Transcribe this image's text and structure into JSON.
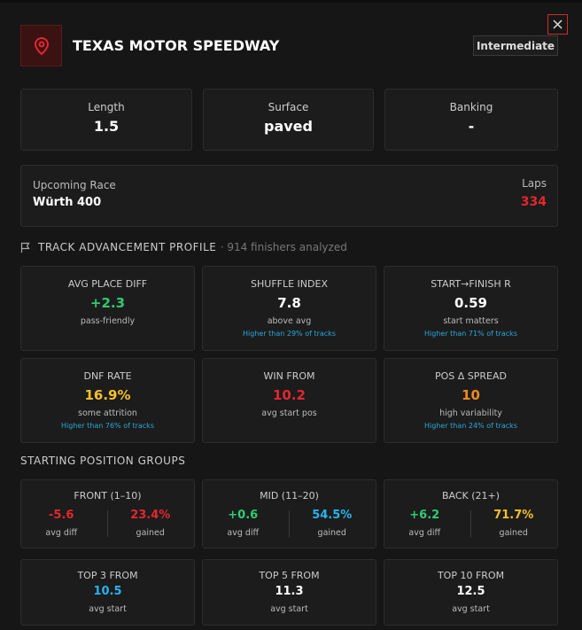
{
  "header": {
    "title": "TEXAS MOTOR SPEEDWAY",
    "badge": "Intermediate"
  },
  "stats": [
    {
      "label": "Length",
      "value": "1.5"
    },
    {
      "label": "Surface",
      "value": "paved"
    },
    {
      "label": "Banking",
      "value": "-"
    }
  ],
  "race": {
    "label": "Upcoming Race",
    "name": "Würth 400",
    "laps_label": "Laps",
    "laps": "334"
  },
  "profile": {
    "title": "TRACK ADVANCEMENT PROFILE",
    "note": "· 914 finishers analyzed",
    "metrics": [
      {
        "label": "AVG PLACE DIFF",
        "value": "+2.3",
        "desc": "pass-friendly"
      },
      {
        "label": "SHUFFLE INDEX",
        "value": "7.8",
        "desc": "above avg",
        "compare": "Higher than 29% of tracks"
      },
      {
        "label": "START→FINISH R",
        "value": "0.59",
        "desc": "start matters",
        "compare": "Higher than 71% of tracks"
      },
      {
        "label": "DNF RATE",
        "value": "16.9%",
        "desc": "some attrition",
        "compare": "Higher than 76% of tracks"
      },
      {
        "label": "WIN FROM",
        "value": "10.2",
        "desc": "avg start pos"
      },
      {
        "label": "POS Δ SPREAD",
        "value": "10",
        "desc": "high variability",
        "compare": "Higher than 24% of tracks"
      }
    ]
  },
  "groups": {
    "title": "STARTING POSITION GROUPS",
    "items": [
      {
        "label": "FRONT (1–10)",
        "diff": "-5.6",
        "diff_label": "avg diff",
        "gained": "23.4%",
        "gained_label": "gained"
      },
      {
        "label": "MID (11–20)",
        "diff": "+0.6",
        "diff_label": "avg diff",
        "gained": "54.5%",
        "gained_label": "gained"
      },
      {
        "label": "BACK (21+)",
        "diff": "+6.2",
        "diff_label": "avg diff",
        "gained": "71.7%",
        "gained_label": "gained"
      }
    ]
  },
  "top_from": [
    {
      "label": "TOP 3 FROM",
      "value": "10.5",
      "desc": "avg start"
    },
    {
      "label": "TOP 5 FROM",
      "value": "11.3",
      "desc": "avg start"
    },
    {
      "label": "TOP 10 FROM",
      "value": "12.5",
      "desc": "avg start"
    }
  ]
}
